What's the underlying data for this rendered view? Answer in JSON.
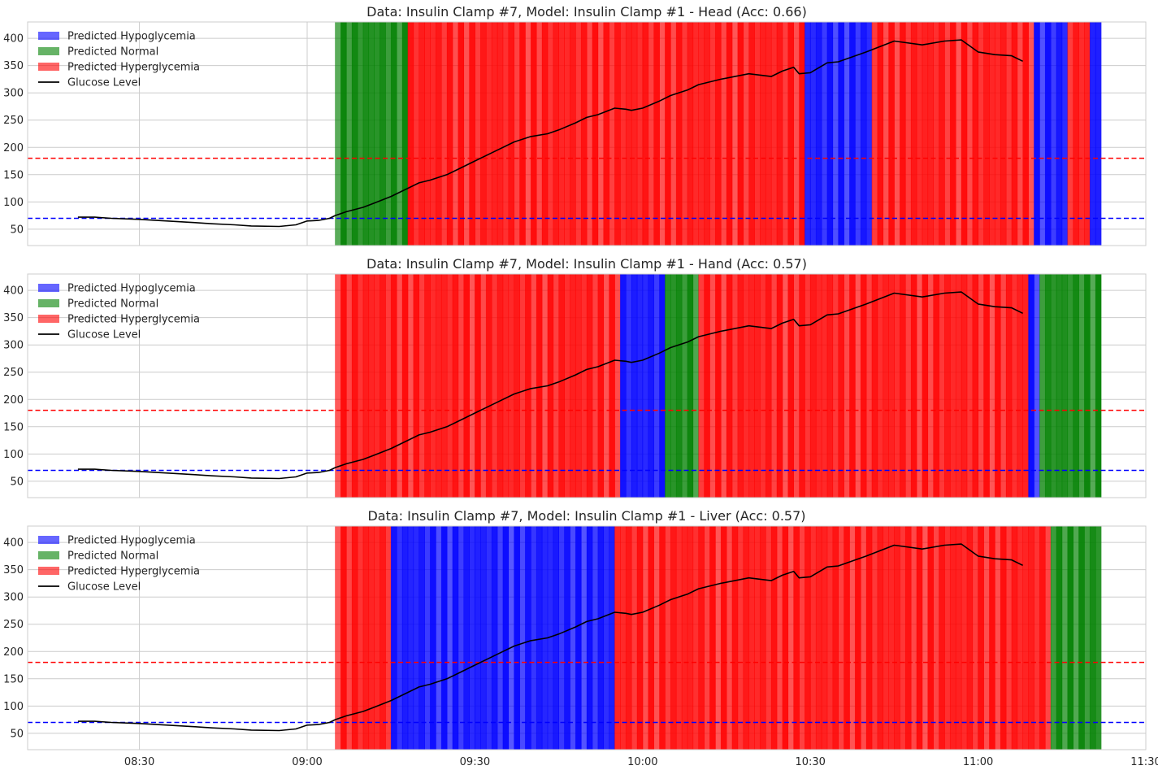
{
  "figure": {
    "x_axis": {
      "min_minutes": 490,
      "max_minutes": 690,
      "ticks": [
        {
          "minutes": 510,
          "label": "08:30"
        },
        {
          "minutes": 540,
          "label": "09:00"
        },
        {
          "minutes": 570,
          "label": "09:30"
        },
        {
          "minutes": 600,
          "label": "10:00"
        },
        {
          "minutes": 630,
          "label": "10:30"
        },
        {
          "minutes": 660,
          "label": "11:00"
        },
        {
          "minutes": 690,
          "label": "11:30"
        }
      ]
    },
    "y_axis": {
      "min": 20,
      "max": 430,
      "ticks": [
        50,
        100,
        150,
        200,
        250,
        300,
        350,
        400
      ]
    },
    "colors": {
      "hypo": "#0000ff",
      "normal": "#008000",
      "hyper": "#ff0000",
      "glucose": "#000000",
      "upper_threshold": "#ff0000",
      "lower_threshold": "#0000ff",
      "grid": "#cccccc"
    }
  },
  "chart_data": [
    {
      "type": "line",
      "title": "Data: Insulin Clamp #7, Model: Insulin Clamp #1 - Head (Acc: 0.66)",
      "legend": [
        "Predicted Hypoglycemia",
        "Predicted Normal",
        "Predicted Hyperglycemia",
        "Glucose Level"
      ],
      "legend_position": "top-left",
      "grid": true,
      "thresholds": [
        180,
        70
      ],
      "prediction_spans": [
        {
          "start": "09:05",
          "end": "09:18",
          "class": "normal"
        },
        {
          "start": "09:18",
          "end": "10:29",
          "class": "hyper"
        },
        {
          "start": "10:29",
          "end": "10:41",
          "class": "hypo"
        },
        {
          "start": "10:41",
          "end": "11:10",
          "class": "hyper"
        },
        {
          "start": "11:10",
          "end": "11:16",
          "class": "hypo"
        },
        {
          "start": "11:16",
          "end": "11:20",
          "class": "hyper"
        },
        {
          "start": "11:20",
          "end": "11:22",
          "class": "hypo"
        }
      ],
      "series": [
        {
          "name": "Glucose Level",
          "x": [
            "08:19",
            "08:22",
            "08:25",
            "08:30",
            "08:35",
            "08:40",
            "08:43",
            "08:47",
            "08:50",
            "08:55",
            "08:58",
            "09:00",
            "09:02",
            "09:04",
            "09:05",
            "09:07",
            "09:10",
            "09:12",
            "09:15",
            "09:18",
            "09:20",
            "09:22",
            "09:25",
            "09:27",
            "09:30",
            "09:32",
            "09:35",
            "09:37",
            "09:40",
            "09:43",
            "09:45",
            "09:48",
            "09:50",
            "09:52",
            "09:55",
            "09:57",
            "09:58",
            "10:00",
            "10:03",
            "10:05",
            "10:08",
            "10:10",
            "10:14",
            "10:19",
            "10:23",
            "10:25",
            "10:27",
            "10:28",
            "10:30",
            "10:33",
            "10:35",
            "10:40",
            "10:45",
            "10:50",
            "10:54",
            "10:57",
            "11:00",
            "11:03",
            "11:06",
            "11:08"
          ],
          "y": [
            72,
            72,
            70,
            68,
            65,
            62,
            60,
            58,
            56,
            55,
            58,
            65,
            66,
            70,
            75,
            82,
            90,
            98,
            110,
            125,
            135,
            140,
            150,
            160,
            175,
            185,
            200,
            210,
            220,
            225,
            232,
            245,
            255,
            260,
            272,
            270,
            268,
            272,
            285,
            295,
            305,
            315,
            325,
            335,
            330,
            340,
            347,
            335,
            337,
            355,
            357,
            375,
            395,
            388,
            395,
            397,
            375,
            370,
            368,
            358
          ]
        }
      ]
    },
    {
      "type": "line",
      "title": "Data: Insulin Clamp #7, Model: Insulin Clamp #1 - Hand (Acc: 0.57)",
      "legend": [
        "Predicted Hypoglycemia",
        "Predicted Normal",
        "Predicted Hyperglycemia",
        "Glucose Level"
      ],
      "legend_position": "top-left",
      "grid": true,
      "thresholds": [
        180,
        70
      ],
      "prediction_spans": [
        {
          "start": "09:05",
          "end": "09:56",
          "class": "hyper"
        },
        {
          "start": "09:56",
          "end": "10:04",
          "class": "hypo"
        },
        {
          "start": "10:04",
          "end": "10:10",
          "class": "normal"
        },
        {
          "start": "10:10",
          "end": "11:09",
          "class": "hyper"
        },
        {
          "start": "11:09",
          "end": "11:11",
          "class": "hypo"
        },
        {
          "start": "11:11",
          "end": "11:22",
          "class": "normal"
        }
      ],
      "series": [
        {
          "name": "Glucose Level",
          "x": [
            "08:19",
            "08:22",
            "08:25",
            "08:30",
            "08:35",
            "08:40",
            "08:43",
            "08:47",
            "08:50",
            "08:55",
            "08:58",
            "09:00",
            "09:02",
            "09:04",
            "09:05",
            "09:07",
            "09:10",
            "09:12",
            "09:15",
            "09:18",
            "09:20",
            "09:22",
            "09:25",
            "09:27",
            "09:30",
            "09:32",
            "09:35",
            "09:37",
            "09:40",
            "09:43",
            "09:45",
            "09:48",
            "09:50",
            "09:52",
            "09:55",
            "09:57",
            "09:58",
            "10:00",
            "10:03",
            "10:05",
            "10:08",
            "10:10",
            "10:14",
            "10:19",
            "10:23",
            "10:25",
            "10:27",
            "10:28",
            "10:30",
            "10:33",
            "10:35",
            "10:40",
            "10:45",
            "10:50",
            "10:54",
            "10:57",
            "11:00",
            "11:03",
            "11:06",
            "11:08"
          ],
          "y": [
            72,
            72,
            70,
            68,
            65,
            62,
            60,
            58,
            56,
            55,
            58,
            65,
            66,
            70,
            75,
            82,
            90,
            98,
            110,
            125,
            135,
            140,
            150,
            160,
            175,
            185,
            200,
            210,
            220,
            225,
            232,
            245,
            255,
            260,
            272,
            270,
            268,
            272,
            285,
            295,
            305,
            315,
            325,
            335,
            330,
            340,
            347,
            335,
            337,
            355,
            357,
            375,
            395,
            388,
            395,
            397,
            375,
            370,
            368,
            358
          ]
        }
      ]
    },
    {
      "type": "line",
      "title": "Data: Insulin Clamp #7, Model: Insulin Clamp #1 - Liver (Acc: 0.57)",
      "legend": [
        "Predicted Hypoglycemia",
        "Predicted Normal",
        "Predicted Hyperglycemia",
        "Glucose Level"
      ],
      "legend_position": "top-left",
      "grid": true,
      "thresholds": [
        180,
        70
      ],
      "prediction_spans": [
        {
          "start": "09:05",
          "end": "09:15",
          "class": "hyper"
        },
        {
          "start": "09:15",
          "end": "09:55",
          "class": "hypo"
        },
        {
          "start": "09:55",
          "end": "11:13",
          "class": "hyper"
        },
        {
          "start": "11:13",
          "end": "11:22",
          "class": "normal"
        }
      ],
      "series": [
        {
          "name": "Glucose Level",
          "x": [
            "08:19",
            "08:22",
            "08:25",
            "08:30",
            "08:35",
            "08:40",
            "08:43",
            "08:47",
            "08:50",
            "08:55",
            "08:58",
            "09:00",
            "09:02",
            "09:04",
            "09:05",
            "09:07",
            "09:10",
            "09:12",
            "09:15",
            "09:18",
            "09:20",
            "09:22",
            "09:25",
            "09:27",
            "09:30",
            "09:32",
            "09:35",
            "09:37",
            "09:40",
            "09:43",
            "09:45",
            "09:48",
            "09:50",
            "09:52",
            "09:55",
            "09:57",
            "09:58",
            "10:00",
            "10:03",
            "10:05",
            "10:08",
            "10:10",
            "10:14",
            "10:19",
            "10:23",
            "10:25",
            "10:27",
            "10:28",
            "10:30",
            "10:33",
            "10:35",
            "10:40",
            "10:45",
            "10:50",
            "10:54",
            "10:57",
            "11:00",
            "11:03",
            "11:06",
            "11:08"
          ],
          "y": [
            72,
            72,
            70,
            68,
            65,
            62,
            60,
            58,
            56,
            55,
            58,
            65,
            66,
            70,
            75,
            82,
            90,
            98,
            110,
            125,
            135,
            140,
            150,
            160,
            175,
            185,
            200,
            210,
            220,
            225,
            232,
            245,
            255,
            260,
            272,
            270,
            268,
            272,
            285,
            295,
            305,
            315,
            325,
            335,
            330,
            340,
            347,
            335,
            337,
            355,
            357,
            375,
            395,
            388,
            395,
            397,
            375,
            370,
            368,
            358
          ]
        }
      ]
    }
  ]
}
